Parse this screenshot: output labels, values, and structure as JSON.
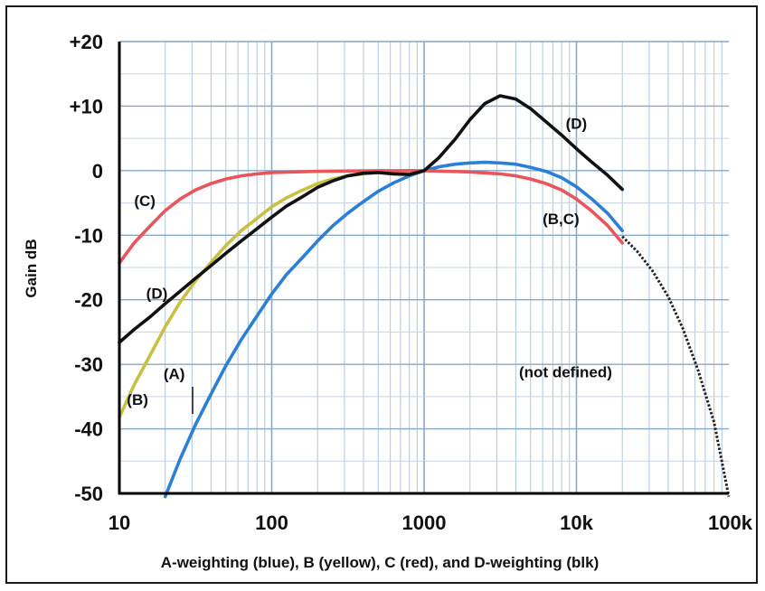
{
  "chart_data": {
    "type": "line",
    "xlabel": "A-weighting (blue), B (yellow), C (red), and D-weighting (blk)",
    "ylabel": "Gain dB",
    "x_scale": "log",
    "xlim": [
      10,
      100000
    ],
    "ylim": [
      -50,
      20
    ],
    "grid": true,
    "x_ticks": [
      {
        "value": 10,
        "label": "10"
      },
      {
        "value": 100,
        "label": "100"
      },
      {
        "value": 1000,
        "label": "1000"
      },
      {
        "value": 10000,
        "label": "10k"
      },
      {
        "value": 100000,
        "label": "100k"
      }
    ],
    "y_ticks": [
      {
        "value": 20,
        "label": "+20"
      },
      {
        "value": 10,
        "label": "+10"
      },
      {
        "value": 0,
        "label": "0"
      },
      {
        "value": -10,
        "label": "-10"
      },
      {
        "value": -20,
        "label": "-20"
      },
      {
        "value": -30,
        "label": "-30"
      },
      {
        "value": -40,
        "label": "-40"
      },
      {
        "value": -50,
        "label": "-50"
      }
    ],
    "series": [
      {
        "color": "#2b7fd6",
        "x": [
          20,
          25,
          31.5,
          40,
          50,
          63,
          80,
          100,
          125,
          160,
          200,
          250,
          315,
          400,
          500,
          630,
          800,
          1000,
          1250,
          1600,
          2000,
          2500,
          3150,
          4000,
          5000,
          6300,
          8000,
          10000,
          12500,
          16000,
          20000
        ],
        "y": [
          -50.5,
          -44.7,
          -39.4,
          -34.6,
          -30.2,
          -26.2,
          -22.5,
          -19.1,
          -16.1,
          -13.4,
          -10.9,
          -8.6,
          -6.6,
          -4.8,
          -3.2,
          -1.9,
          -0.8,
          0,
          0.6,
          1.0,
          1.2,
          1.3,
          1.2,
          1.0,
          0.5,
          -0.1,
          -1.1,
          -2.5,
          -4.3,
          -6.6,
          -9.3
        ]
      },
      {
        "color": "#c8c040",
        "x": [
          10,
          12.5,
          16,
          20,
          25,
          31.5,
          40,
          50,
          63,
          80,
          100,
          125,
          160,
          200,
          250,
          315,
          400,
          500,
          630,
          800,
          1000
        ],
        "y": [
          -38.2,
          -33.2,
          -28.5,
          -24.2,
          -20.4,
          -17.1,
          -14.2,
          -11.6,
          -9.3,
          -7.4,
          -5.6,
          -4.2,
          -3.0,
          -2.0,
          -1.3,
          -0.8,
          -0.5,
          -0.3,
          -0.1,
          0,
          0
        ]
      },
      {
        "color": "#e8555a",
        "x": [
          10,
          12.5,
          16,
          20,
          25,
          31.5,
          40,
          50,
          63,
          80,
          100,
          200,
          500,
          1000,
          2000,
          3150,
          4000,
          5000,
          6300,
          8000,
          10000,
          12500,
          16000,
          20000
        ],
        "y": [
          -14.3,
          -11.2,
          -8.5,
          -6.2,
          -4.4,
          -3.0,
          -2.0,
          -1.3,
          -0.8,
          -0.5,
          -0.3,
          -0.1,
          0,
          0,
          -0.2,
          -0.5,
          -0.8,
          -1.3,
          -2.0,
          -3.0,
          -4.4,
          -6.2,
          -8.5,
          -11.2
        ]
      },
      {
        "color": "#111111",
        "x": [
          10,
          12.5,
          16,
          20,
          25,
          31.5,
          40,
          50,
          63,
          80,
          100,
          125,
          160,
          200,
          250,
          315,
          400,
          500,
          630,
          800,
          1000,
          1250,
          1600,
          2000,
          2500,
          3150,
          4000,
          5000,
          6300,
          8000,
          10000,
          12500,
          16000,
          20000
        ],
        "y": [
          -26.6,
          -24.6,
          -22.6,
          -20.6,
          -18.7,
          -16.7,
          -14.7,
          -12.8,
          -10.9,
          -9.0,
          -7.2,
          -5.5,
          -4.0,
          -2.6,
          -1.6,
          -0.8,
          -0.4,
          -0.3,
          -0.5,
          -0.6,
          0,
          2.0,
          4.9,
          7.9,
          10.4,
          11.6,
          11.1,
          9.6,
          7.6,
          5.5,
          3.4,
          1.4,
          -0.7,
          -2.9
        ]
      }
    ],
    "undefined_segment": {
      "x": [
        20000,
        25000,
        31500,
        40000,
        50000,
        63000,
        80000,
        100000
      ],
      "y": [
        -10.2,
        -12.5,
        -15.5,
        -19.5,
        -24.5,
        -31.0,
        -39.0,
        -50.5
      ]
    },
    "annotations": [
      {
        "text": "(C)",
        "x": 12.5,
        "y": -5.5
      },
      {
        "text": "(D)",
        "x": 15,
        "y": -19.8
      },
      {
        "text": "(B)",
        "x": 11.2,
        "y": -36.3
      },
      {
        "text": "(A)",
        "x": 19.5,
        "y": -32.3
      },
      {
        "text": "(D)",
        "x": 8500,
        "y": 6.5
      },
      {
        "text": "(B,C)",
        "x": 6000,
        "y": -8.3
      },
      {
        "text": "(not defined)",
        "x": 4200,
        "y": -32
      }
    ]
  }
}
